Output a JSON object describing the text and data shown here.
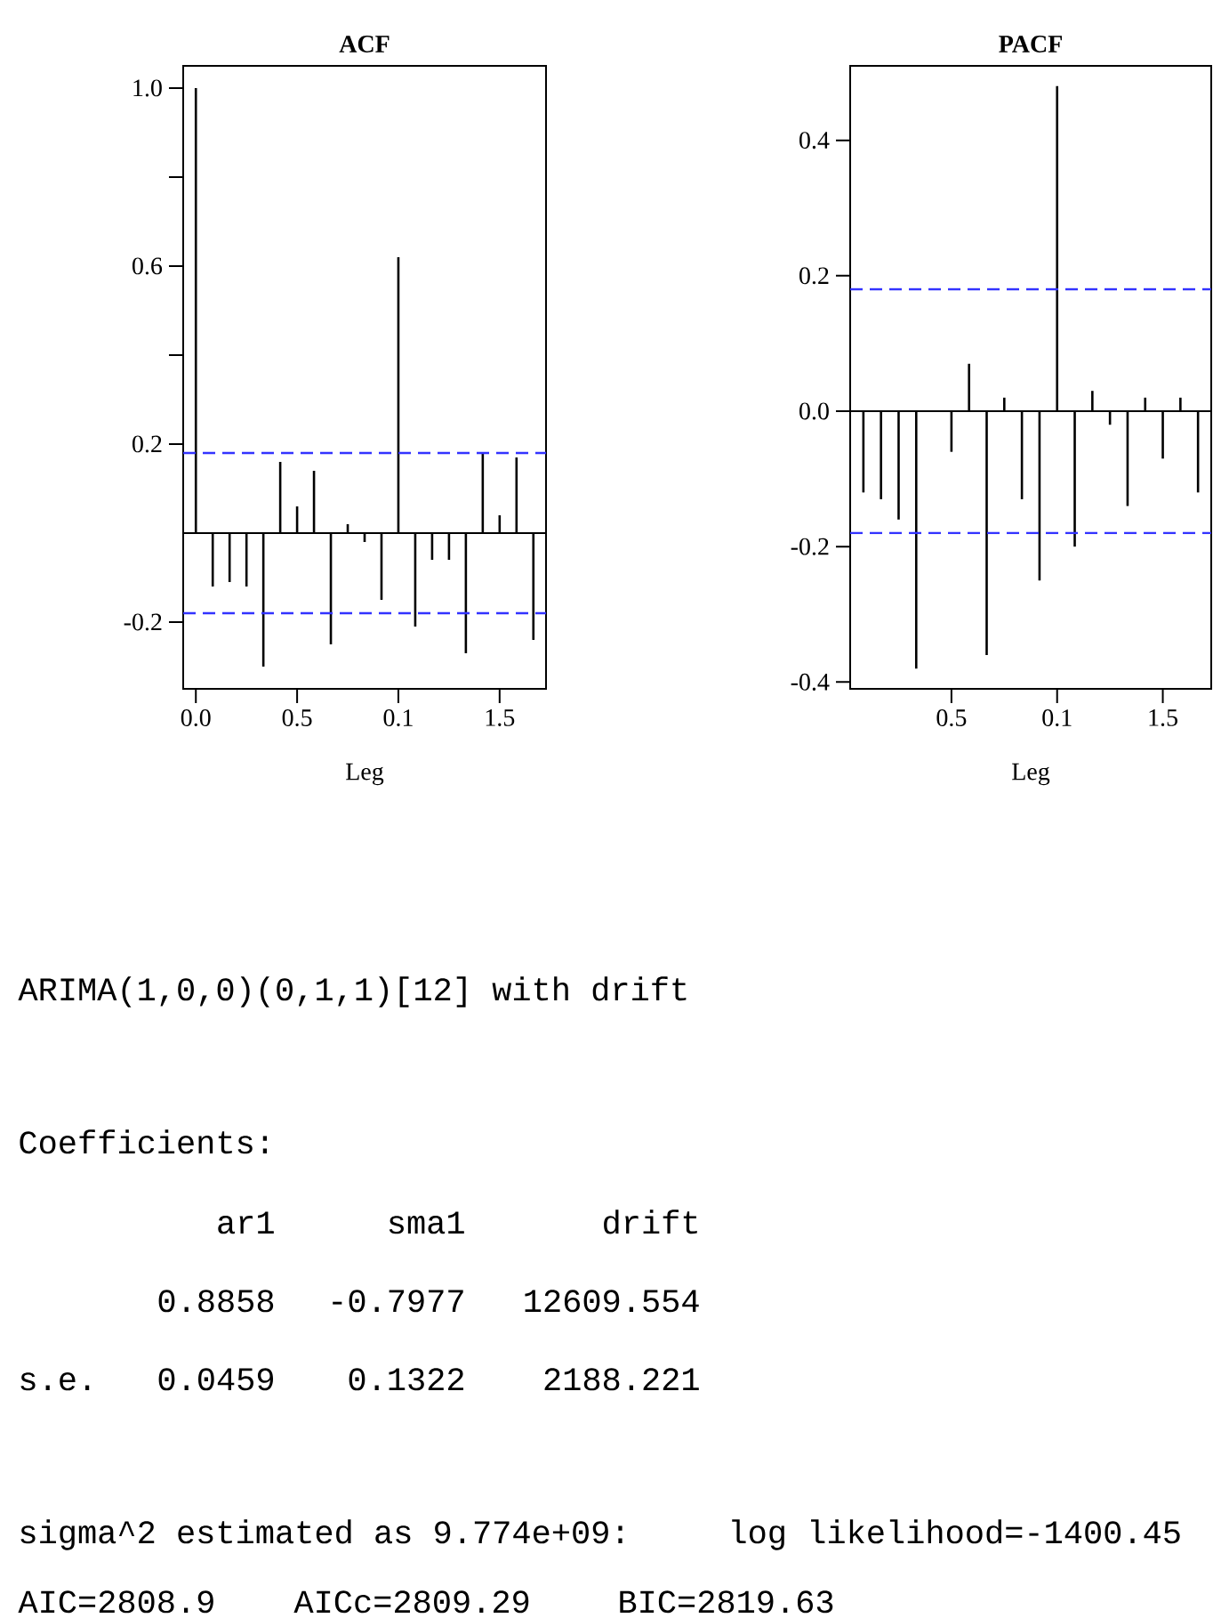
{
  "chart_data": [
    {
      "type": "bar",
      "title": "ACF",
      "xlabel": "Leg",
      "color": "#000000",
      "categories": [
        "0.0",
        null,
        null,
        null,
        null,
        null,
        "0.5",
        null,
        null,
        null,
        null,
        null,
        "0.1",
        null,
        null,
        null,
        null,
        null,
        "1.5",
        null,
        null
      ],
      "values": [
        1.0,
        -0.12,
        -0.11,
        -0.12,
        -0.3,
        0.16,
        0.06,
        0.14,
        -0.25,
        0.02,
        -0.02,
        -0.15,
        0.62,
        -0.21,
        -0.06,
        -0.06,
        -0.27,
        0.18,
        0.04,
        0.17,
        -0.24
      ],
      "ylim": [
        -0.35,
        1.05
      ],
      "yticks": [
        {
          "value": -0.2,
          "label": "-0.2"
        },
        {
          "value": 0.2,
          "label": "0.2"
        },
        {
          "value": 0.4,
          "label": null
        },
        {
          "value": 0.6,
          "label": "0.6"
        },
        {
          "value": 0.8,
          "label": null
        },
        {
          "value": 1.0,
          "label": "1.0"
        }
      ],
      "ref_lines": [
        {
          "axis": "y",
          "value": 0.18,
          "color": "#3333ff",
          "line_style": "dashed"
        },
        {
          "axis": "y",
          "value": -0.18,
          "color": "#3333ff",
          "line_style": "dashed"
        }
      ]
    },
    {
      "type": "bar",
      "title": "PACF",
      "xlabel": "Leg",
      "color": "#000000",
      "categories": [
        null,
        null,
        null,
        null,
        null,
        "0.5",
        null,
        null,
        null,
        null,
        null,
        "0.1",
        null,
        null,
        null,
        null,
        null,
        "1.5",
        null,
        null
      ],
      "values": [
        -0.12,
        -0.13,
        -0.16,
        -0.38,
        0,
        -0.06,
        0.07,
        -0.36,
        0.02,
        -0.13,
        -0.25,
        0.48,
        -0.2,
        0.03,
        -0.02,
        -0.14,
        0.02,
        -0.07,
        0.02,
        -0.12
      ],
      "ylim": [
        -0.41,
        0.51
      ],
      "yticks": [
        {
          "value": -0.4,
          "label": "-0.4"
        },
        {
          "value": -0.2,
          "label": "-0.2"
        },
        {
          "value": 0,
          "label": "0.0"
        },
        {
          "value": 0.2,
          "label": "0.2"
        },
        {
          "value": 0.4,
          "label": "0.4"
        }
      ],
      "ref_lines": [
        {
          "axis": "y",
          "value": 0.18,
          "color": "#3333ff",
          "line_style": "dashed"
        },
        {
          "axis": "y",
          "value": -0.18,
          "color": "#3333ff",
          "line_style": "dashed"
        }
      ]
    },
    {
      "type": "other",
      "annotations": [
        "ARIMA(1,0,0)(0,1,1)[12] with drift",
        "Coefficients:",
        "ar1",
        "sma1",
        "drift",
        "0.8858",
        "-0.7977",
        "12609.554",
        "s.e.",
        "0.0459",
        "0.1322",
        "2188.221",
        "sigma^2 estimated as 9.774e+09:",
        "log likelihood=-1400.45",
        "AIC=2808.9",
        "AICc=2809.29",
        "BIC=2819.63"
      ]
    }
  ]
}
